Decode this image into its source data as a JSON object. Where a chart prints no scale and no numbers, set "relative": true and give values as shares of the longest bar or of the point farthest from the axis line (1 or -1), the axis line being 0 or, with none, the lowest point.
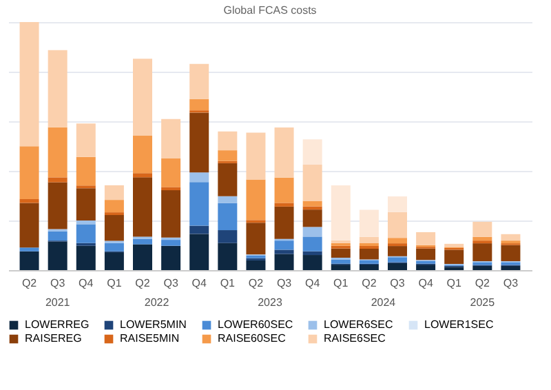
{
  "chart_data": {
    "type": "bar",
    "title": "Global FCAS costs",
    "relative": true,
    "stacked": true,
    "grid": "y",
    "legend": "bottom",
    "categories": [
      "Q2",
      "Q3",
      "Q4",
      "Q1",
      "Q2",
      "Q3",
      "Q4",
      "Q1",
      "Q2",
      "Q3",
      "Q4",
      "Q1",
      "Q2",
      "Q3",
      "Q4",
      "Q1",
      "Q2",
      "Q3"
    ],
    "annotations": [
      "2021",
      "2022",
      "2023",
      "2024",
      "2025"
    ],
    "series": [
      {
        "name": "LOWERREG",
        "color": "#0e2841",
        "values": [
          0.076,
          0.115,
          0.098,
          0.072,
          0.104,
          0.098,
          0.146,
          0.109,
          0.039,
          0.065,
          0.061,
          0.022,
          0.022,
          0.028,
          0.022,
          0.013,
          0.017,
          0.017
        ]
      },
      {
        "name": "LOWER5MIN",
        "color": "#1f4479",
        "values": [
          0,
          0.004,
          0.011,
          0.004,
          0,
          0,
          0.033,
          0.052,
          0.009,
          0.017,
          0.015,
          0.004,
          0.004,
          0.004,
          0.004,
          0.004,
          0.004,
          0.004
        ]
      },
      {
        "name": "LOWER60SEC",
        "color": "#4a8bd6",
        "values": [
          0.015,
          0.037,
          0.076,
          0.033,
          0.022,
          0.024,
          0.176,
          0.109,
          0.011,
          0.037,
          0.059,
          0.017,
          0.013,
          0.02,
          0.011,
          0.004,
          0.011,
          0.011
        ]
      },
      {
        "name": "LOWER6SEC",
        "color": "#9cc0ea",
        "values": [
          0,
          0.009,
          0.015,
          0.009,
          0.009,
          0.009,
          0.039,
          0.028,
          0.004,
          0.007,
          0.039,
          0.007,
          0.004,
          0.004,
          0.004,
          0.004,
          0.004,
          0.004
        ]
      },
      {
        "name": "LOWER1SEC",
        "color": "#d6e5f6",
        "values": [
          0,
          0,
          0,
          0,
          0,
          0,
          0,
          0,
          0,
          0,
          0,
          0,
          0,
          0,
          0,
          0,
          0,
          0
        ]
      },
      {
        "name": "RAISEREG",
        "color": "#8b3f0a",
        "values": [
          0.18,
          0.189,
          0.13,
          0.104,
          0.239,
          0.191,
          0.241,
          0.133,
          0.128,
          0.13,
          0.07,
          0.037,
          0.043,
          0.041,
          0.046,
          0.057,
          0.072,
          0.065
        ]
      },
      {
        "name": "RAISE5MIN",
        "color": "#d8661a",
        "values": [
          0.015,
          0.02,
          0.011,
          0.011,
          0.017,
          0.013,
          0.009,
          0.009,
          0.011,
          0.015,
          0.013,
          0.011,
          0.011,
          0.011,
          0.007,
          0.007,
          0.011,
          0.007
        ]
      },
      {
        "name": "RAISE60SEC",
        "color": "#f59a4a",
        "values": [
          0.213,
          0.202,
          0.115,
          0.05,
          0.152,
          0.115,
          0.046,
          0.043,
          0.163,
          0.102,
          0.022,
          0.011,
          0.011,
          0.022,
          0.007,
          0.004,
          0.015,
          0.011
        ]
      },
      {
        "name": "RAISE6SEC",
        "color": "#fbd0ad",
        "values": [
          0.501,
          0.311,
          0.135,
          0.059,
          0.309,
          0.159,
          0.141,
          0.076,
          0.189,
          0.202,
          0.146,
          0.011,
          0.026,
          0.104,
          0.052,
          0.013,
          0.061,
          0.026
        ]
      },
      {
        "color": "#fde8d8",
        "values": [
          0,
          0,
          0,
          0,
          0,
          0,
          0,
          0,
          0,
          0,
          0.102,
          0.222,
          0.109,
          0.063,
          0,
          0,
          0,
          0
        ]
      }
    ]
  }
}
